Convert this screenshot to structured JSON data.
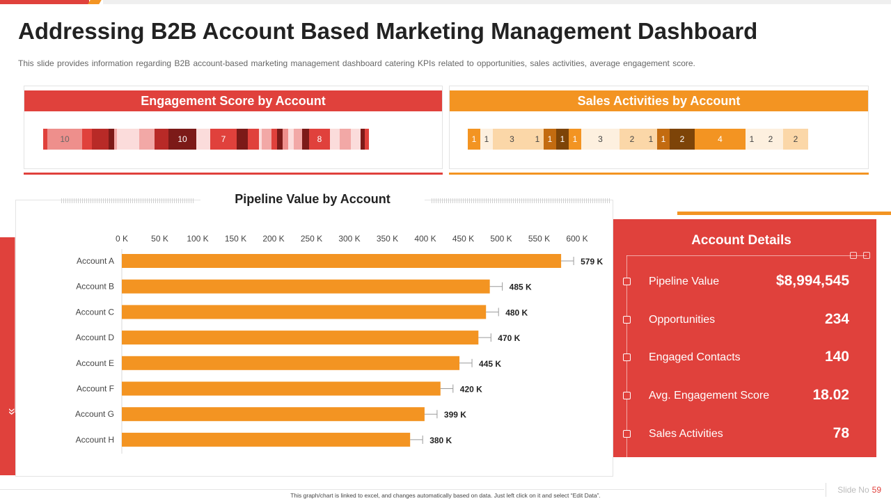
{
  "slide": {
    "title": "Addressing B2B Account Based Marketing Management Dashboard",
    "subtitle": "This slide provides information regarding B2B account-based marketing management dashboard catering KPIs related to opportunities, sales activities, average engagement score.",
    "footnote": "This graph/chart is linked to excel, and changes automatically based on data. Just left click on it and select “Edit Data”.",
    "slide_no_label": "Slide No",
    "slide_no": "59"
  },
  "colors": {
    "red": "#e0413c",
    "orange": "#f39422",
    "bar_orange": "#f39422"
  },
  "engagement": {
    "title": "Engagement Score by Account",
    "segments": [
      {
        "w": 6,
        "c": "#e0413c",
        "label": ""
      },
      {
        "w": 50,
        "c": "#ee8f8c",
        "label": "10"
      },
      {
        "w": 14,
        "c": "#e0413c",
        "label": ""
      },
      {
        "w": 24,
        "c": "#b82a27",
        "label": ""
      },
      {
        "w": 8,
        "c": "#7c1a18",
        "label": ""
      },
      {
        "w": 4,
        "c": "#f2a8a6",
        "label": ""
      },
      {
        "w": 32,
        "c": "#fbdcdb",
        "label": ""
      },
      {
        "w": 22,
        "c": "#f2a8a6",
        "label": ""
      },
      {
        "w": 20,
        "c": "#b82a27",
        "label": ""
      },
      {
        "w": 40,
        "c": "#7c1a18",
        "label": "10"
      },
      {
        "w": 20,
        "c": "#fbdcdb",
        "label": ""
      },
      {
        "w": 38,
        "c": "#e0413c",
        "label": "7"
      },
      {
        "w": 16,
        "c": "#7c1a18",
        "label": ""
      },
      {
        "w": 16,
        "c": "#e0413c",
        "label": ""
      },
      {
        "w": 4,
        "c": "#fbdcdb",
        "label": ""
      },
      {
        "w": 14,
        "c": "#f2a8a6",
        "label": ""
      },
      {
        "w": 8,
        "c": "#e0413c",
        "label": ""
      },
      {
        "w": 8,
        "c": "#7c1a18",
        "label": ""
      },
      {
        "w": 8,
        "c": "#ee8f8c",
        "label": ""
      },
      {
        "w": 8,
        "c": "#fbdcdb",
        "label": ""
      },
      {
        "w": 12,
        "c": "#f2a8a6",
        "label": ""
      },
      {
        "w": 10,
        "c": "#7c1a18",
        "label": ""
      },
      {
        "w": 30,
        "c": "#e0413c",
        "label": "8"
      },
      {
        "w": 14,
        "c": "#fbdcdb",
        "label": ""
      },
      {
        "w": 16,
        "c": "#f2a8a6",
        "label": ""
      },
      {
        "w": 14,
        "c": "#fbdcdb",
        "label": ""
      },
      {
        "w": 6,
        "c": "#7c1a18",
        "label": ""
      },
      {
        "w": 6,
        "c": "#e0413c",
        "label": ""
      }
    ]
  },
  "sales": {
    "title": "Sales Activities by Account",
    "segments": [
      {
        "w": 18,
        "c": "#f39422",
        "label": "1"
      },
      {
        "w": 18,
        "c": "#fdf0df",
        "label": "1"
      },
      {
        "w": 55,
        "c": "#fbd7a8",
        "label": "3"
      },
      {
        "w": 18,
        "c": "#fbd7a8",
        "label": "1"
      },
      {
        "w": 18,
        "c": "#c36b10",
        "label": "1"
      },
      {
        "w": 18,
        "c": "#7d4408",
        "label": "1"
      },
      {
        "w": 18,
        "c": "#f39422",
        "label": "1"
      },
      {
        "w": 55,
        "c": "#fdf0df",
        "label": "3"
      },
      {
        "w": 36,
        "c": "#fbd7a8",
        "label": "2"
      },
      {
        "w": 18,
        "c": "#fbd7a8",
        "label": "1"
      },
      {
        "w": 18,
        "c": "#c36b10",
        "label": "1"
      },
      {
        "w": 36,
        "c": "#7d4408",
        "label": "2"
      },
      {
        "w": 73,
        "c": "#f39422",
        "label": "4"
      },
      {
        "w": 18,
        "c": "#fdf0df",
        "label": "1"
      },
      {
        "w": 36,
        "c": "#fdf0df",
        "label": "2"
      },
      {
        "w": 36,
        "c": "#fbd7a8",
        "label": "2"
      }
    ]
  },
  "account_details": {
    "title": "Account Details",
    "rows": [
      {
        "label": "Pipeline Value",
        "value": "$8,994,545"
      },
      {
        "label": "Opportunities",
        "value": "234"
      },
      {
        "label": "Engaged Contacts",
        "value": "140"
      },
      {
        "label": "Avg. Engagement Score",
        "value": "18.02"
      },
      {
        "label": "Sales Activities",
        "value": "78"
      }
    ]
  },
  "chart_data": {
    "type": "bar",
    "orientation": "horizontal",
    "title": "Pipeline Value by Account",
    "xlabel": "",
    "ylabel": "",
    "xlim": [
      0,
      600
    ],
    "x_ticks": [
      "0 K",
      "50 K",
      "100 K",
      "150 K",
      "200 K",
      "250 K",
      "300 K",
      "350 K",
      "400 K",
      "450 K",
      "500 K",
      "550 K",
      "600 K"
    ],
    "categories": [
      "Account  A",
      "Account  B",
      "Account  C",
      "Account  D",
      "Account  E",
      "Account  F",
      "Account  G",
      "Account  H"
    ],
    "values": [
      579,
      485,
      480,
      470,
      445,
      420,
      399,
      380
    ],
    "value_labels": [
      "579  K",
      "485  K",
      "480  K",
      "470  K",
      "445  K",
      "420  K",
      "399  K",
      "380  K"
    ],
    "grid": false,
    "legend": "none"
  }
}
